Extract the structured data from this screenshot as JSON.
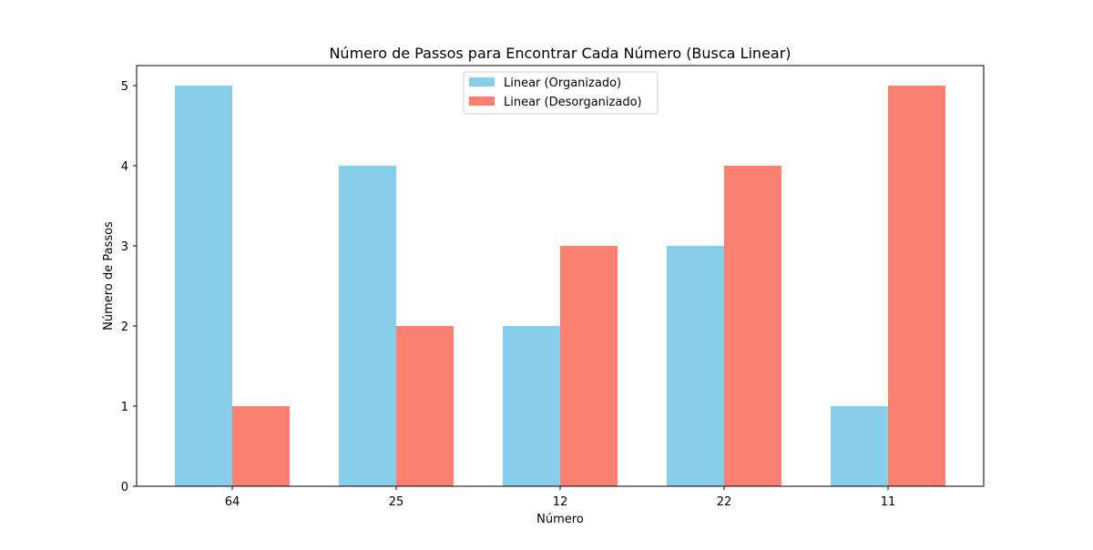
{
  "chart_data": {
    "type": "bar",
    "title": "Número de Passos para Encontrar Cada Número (Busca Linear)",
    "xlabel": "Número",
    "ylabel": "Número de Passos",
    "categories": [
      "64",
      "25",
      "12",
      "22",
      "11"
    ],
    "series": [
      {
        "name": "Linear (Organizado)",
        "values": [
          5,
          4,
          2,
          3,
          1
        ],
        "color": "#87ceeb"
      },
      {
        "name": "Linear (Desorganizado)",
        "values": [
          1,
          2,
          3,
          4,
          5
        ],
        "color": "#fa8072"
      }
    ],
    "ylim": [
      0,
      5.25
    ],
    "yticks": [
      0,
      1,
      2,
      3,
      4,
      5
    ],
    "grid": false,
    "legend_position": "top-center"
  }
}
